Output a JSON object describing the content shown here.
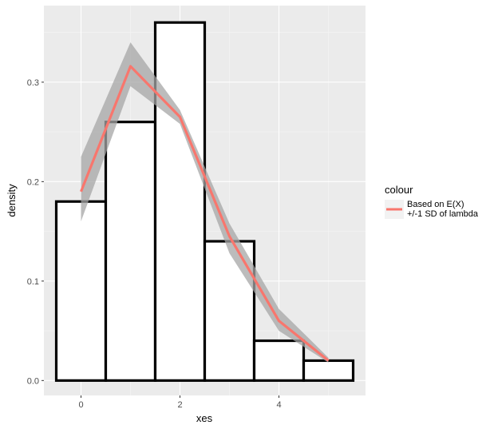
{
  "chart_data": {
    "type": "bar",
    "xlabel": "xes",
    "ylabel": "density",
    "xlim": [
      -0.75,
      5.75
    ],
    "ylim": [
      -0.015,
      0.377
    ],
    "x_ticks": [
      0,
      2,
      4
    ],
    "x_tick_labels": [
      "0",
      "2",
      "4"
    ],
    "y_ticks": [
      0.0,
      0.1,
      0.2,
      0.3
    ],
    "y_tick_labels": [
      "0.0",
      "0.1",
      "0.2",
      "0.3"
    ],
    "grid": true,
    "histogram": {
      "bin_width": 1,
      "bins": [
        {
          "center": 0,
          "value": 0.18
        },
        {
          "center": 1,
          "value": 0.26
        },
        {
          "center": 2,
          "value": 0.36
        },
        {
          "center": 3,
          "value": 0.14
        },
        {
          "center": 4,
          "value": 0.04
        },
        {
          "center": 5,
          "value": 0.02
        }
      ],
      "fill": "#ffffff",
      "outline": "#000000"
    },
    "series": [
      {
        "type": "line",
        "x": [
          0,
          1,
          2,
          3,
          4,
          5
        ],
        "y": [
          0.19,
          0.316,
          0.265,
          0.145,
          0.06,
          0.02
        ]
      }
    ],
    "ribbon": {
      "x": [
        0,
        1,
        2,
        3,
        4,
        5
      ],
      "ymin": [
        0.16,
        0.296,
        0.258,
        0.128,
        0.05,
        0.018
      ],
      "ymax": [
        0.225,
        0.34,
        0.272,
        0.158,
        0.072,
        0.023
      ]
    },
    "legend": {
      "title": "colour",
      "position": "right",
      "entries": [
        "Based on E(X)",
        "+/-1 SD of lambda"
      ]
    },
    "colors": {
      "panel": "#ebebeb",
      "grid_major": "#ffffff",
      "grid_minor": "#f5f5f5",
      "line": "#f8766d",
      "ribbon": "#a6a6a6"
    }
  }
}
